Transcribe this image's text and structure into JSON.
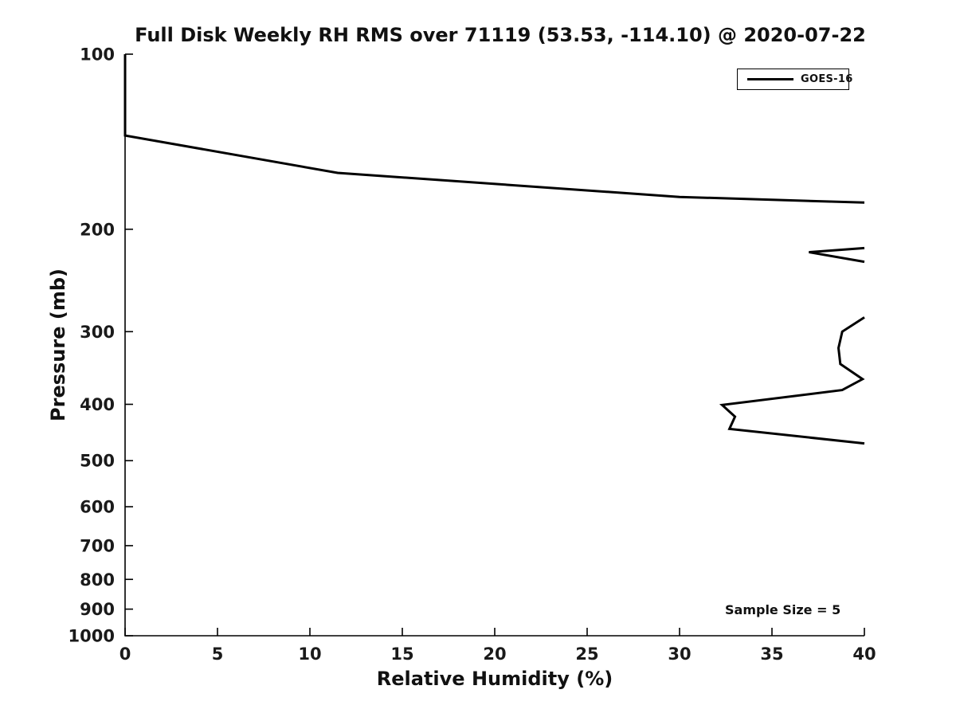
{
  "figure": {
    "background_color": "#ffffff",
    "axis_color": "#000000",
    "text_color": "#111111"
  },
  "chart_data": {
    "type": "line",
    "title": "Full Disk Weekly RH RMS over 71119 (53.53, -114.10) @ 2020-07-22",
    "xlabel": "Relative Humidity (%)",
    "ylabel": "Pressure (mb)",
    "xlim": [
      0,
      40
    ],
    "ylim": [
      100,
      1000
    ],
    "y_scale": "log",
    "y_inverted": true,
    "grid": false,
    "x_ticks": [
      0,
      5,
      10,
      15,
      20,
      25,
      30,
      35,
      40
    ],
    "y_ticks": [
      100,
      200,
      300,
      400,
      500,
      600,
      700,
      800,
      900,
      1000
    ],
    "legend_position": "upper right",
    "series": [
      {
        "name": "GOES-16",
        "color": "#000000",
        "line_width": 3,
        "segments": [
          [
            [
              0,
              100
            ],
            [
              0,
              138
            ],
            [
              11.5,
              160
            ],
            [
              30,
              176
            ],
            [
              40,
              180
            ]
          ],
          [
            [
              40,
              215.5
            ],
            [
              37.0,
              219
            ],
            [
              40,
              227.5
            ]
          ],
          [
            [
              40,
              283.5
            ],
            [
              38.8,
              300
            ],
            [
              38.6,
              320
            ],
            [
              38.7,
              341
            ],
            [
              39.9,
              362
            ],
            [
              38.8,
              378
            ],
            [
              32.3,
              401
            ],
            [
              33.0,
              420
            ],
            [
              32.7,
              441
            ],
            [
              40,
              467
            ]
          ]
        ]
      }
    ],
    "annotations": [
      {
        "text": "Sample Size = 5"
      }
    ]
  }
}
